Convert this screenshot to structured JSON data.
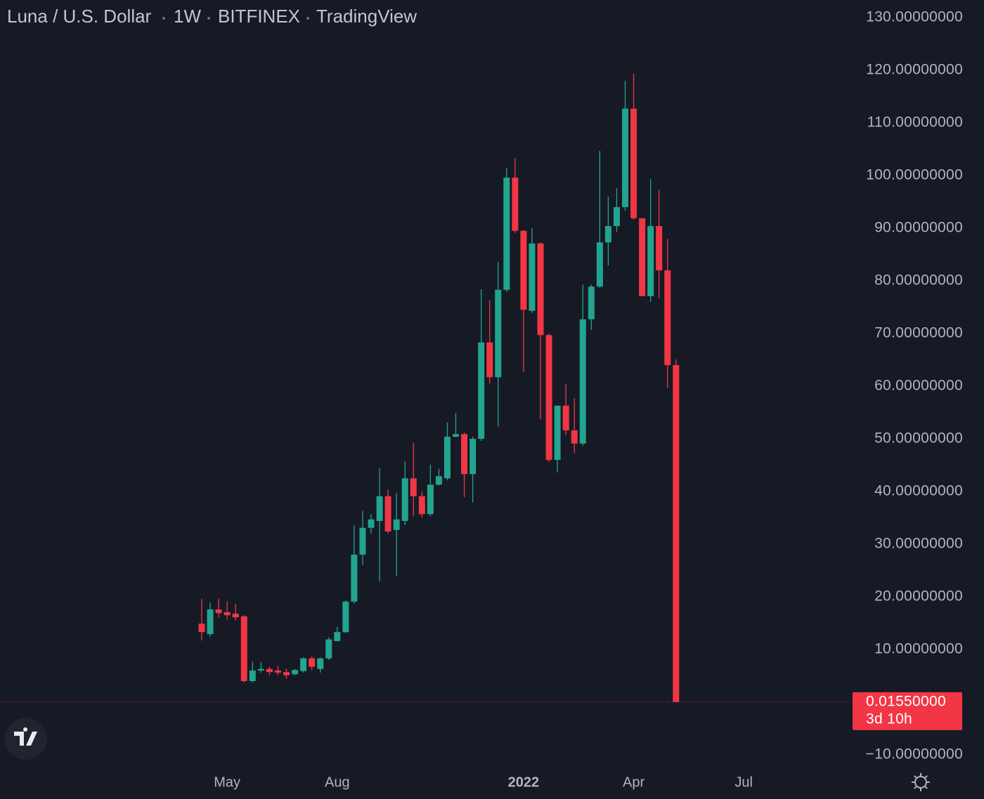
{
  "chart_data": {
    "type": "candlestick",
    "symbol": "Luna / U.S. Dollar",
    "interval": "1W",
    "exchange": "BITFINEX",
    "source": "TradingView",
    "categories": [
      null,
      null,
      null,
      "May",
      null,
      null,
      null,
      null,
      null,
      null,
      null,
      null,
      null,
      null,
      null,
      null,
      "Aug",
      null,
      null,
      null,
      null,
      null,
      null,
      null,
      null,
      null,
      null,
      null,
      null,
      null,
      null,
      null,
      null,
      null,
      null,
      null,
      null,
      null,
      "2022",
      null,
      null,
      null,
      null,
      null,
      null,
      null,
      null,
      null,
      null,
      null,
      null,
      "Apr",
      null,
      null,
      null,
      null,
      null,
      null,
      null,
      null,
      null,
      null,
      null,
      null,
      "Jul",
      null,
      null,
      null,
      null,
      null,
      null,
      null,
      null,
      null,
      null,
      null
    ],
    "open": [
      14.9,
      12.9,
      17.6,
      17.1,
      16.8,
      16.3,
      4.0,
      6.0,
      6.3,
      6.0,
      5.7,
      5.3,
      5.9,
      8.3,
      6.3,
      8.3,
      11.6,
      13.3,
      19.1,
      28.0,
      33.1,
      34.4,
      39.1,
      32.7,
      34.4,
      42.5,
      39.1,
      35.7,
      41.3,
      42.5,
      50.4,
      50.9,
      43.3,
      50.0,
      68.3,
      61.7,
      78.3,
      99.6,
      89.5,
      74.3,
      87.1,
      69.7,
      46.0,
      56.3,
      51.6,
      49.1,
      72.7,
      78.9,
      87.3,
      90.4,
      94.0,
      112.7,
      91.9,
      77.1,
      90.4,
      82.0,
      64.0,
      null,
      null,
      null,
      null,
      null,
      null,
      null,
      null,
      null,
      null,
      null,
      null,
      null,
      null,
      null,
      null,
      null,
      null,
      null
    ],
    "high": [
      19.6,
      18.9,
      19.6,
      19.2,
      18.7,
      16.5,
      7.7,
      7.6,
      6.7,
      6.9,
      6.4,
      6.3,
      8.5,
      8.7,
      8.5,
      12.3,
      14.3,
      19.3,
      33.6,
      36.3,
      35.7,
      44.4,
      40.4,
      39.7,
      45.7,
      49.2,
      40.0,
      45.1,
      44.3,
      53.1,
      54.9,
      51.2,
      50.4,
      78.4,
      76.3,
      83.6,
      101.5,
      103.3,
      89.7,
      90.0,
      87.3,
      70.0,
      56.3,
      60.4,
      57.7,
      79.3,
      79.3,
      104.7,
      96.0,
      97.6,
      118.0,
      119.3,
      91.9,
      99.3,
      97.3,
      88.0,
      65.1,
      null,
      null,
      null,
      null,
      null,
      null,
      null,
      null,
      null,
      null,
      null,
      null,
      null,
      null,
      null,
      null,
      null,
      null,
      null
    ],
    "low": [
      11.7,
      12.4,
      16.0,
      15.7,
      15.5,
      3.7,
      3.7,
      5.6,
      5.1,
      5.1,
      4.4,
      5.1,
      5.6,
      6.1,
      5.6,
      8.0,
      11.5,
      13.1,
      18.7,
      26.0,
      32.0,
      22.9,
      32.0,
      24.0,
      33.6,
      35.3,
      35.1,
      35.3,
      41.1,
      42.1,
      50.3,
      38.9,
      37.9,
      49.6,
      60.5,
      52.3,
      77.9,
      89.1,
      62.7,
      73.9,
      53.7,
      45.6,
      43.6,
      50.7,
      47.3,
      48.7,
      70.7,
      78.7,
      82.9,
      89.3,
      93.3,
      91.6,
      77.1,
      76.0,
      76.7,
      59.6,
      0.0155,
      null,
      null,
      null,
      null,
      null,
      null,
      null,
      null,
      null,
      null,
      null,
      null,
      null,
      null,
      null,
      null,
      null,
      null,
      null
    ],
    "close": [
      13.3,
      17.6,
      16.9,
      16.5,
      16.1,
      4.0,
      6.0,
      6.3,
      5.7,
      5.6,
      5.1,
      6.1,
      8.3,
      6.7,
      8.3,
      11.9,
      13.3,
      19.1,
      28.0,
      33.1,
      34.7,
      39.1,
      32.4,
      34.7,
      42.5,
      39.1,
      35.7,
      41.3,
      42.9,
      50.4,
      50.9,
      43.3,
      50.0,
      68.3,
      61.7,
      78.3,
      99.6,
      89.5,
      74.5,
      87.1,
      69.7,
      46.0,
      56.3,
      51.6,
      49.1,
      72.7,
      78.9,
      87.3,
      90.4,
      94.0,
      112.7,
      91.9,
      77.1,
      90.4,
      82.0,
      64.0,
      0.0155,
      null,
      null,
      null,
      null,
      null,
      null,
      null,
      null,
      null,
      null,
      null,
      null,
      null,
      null,
      null,
      null,
      null,
      null,
      null
    ],
    "up_color": "#22a48f",
    "down_color": "#f23645",
    "ylim": [
      -10,
      130
    ],
    "yticks": [
      {
        "value": 130,
        "label": "130.00000000"
      },
      {
        "value": 120,
        "label": "120.00000000"
      },
      {
        "value": 110,
        "label": "110.00000000"
      },
      {
        "value": 100,
        "label": "100.00000000"
      },
      {
        "value": 90,
        "label": "90.00000000"
      },
      {
        "value": 80,
        "label": "80.00000000"
      },
      {
        "value": 70,
        "label": "70.00000000"
      },
      {
        "value": 60,
        "label": "60.00000000"
      },
      {
        "value": 50,
        "label": "50.00000000"
      },
      {
        "value": 40,
        "label": "40.00000000"
      },
      {
        "value": 30,
        "label": "30.00000000"
      },
      {
        "value": 20,
        "label": "20.00000000"
      },
      {
        "value": 10,
        "label": "10.00000000"
      },
      {
        "value": -10,
        "label": "−10.00000000"
      }
    ],
    "last_price": {
      "value": 0.0155,
      "label": "0.01550000"
    },
    "countdown": "3d 10h"
  }
}
